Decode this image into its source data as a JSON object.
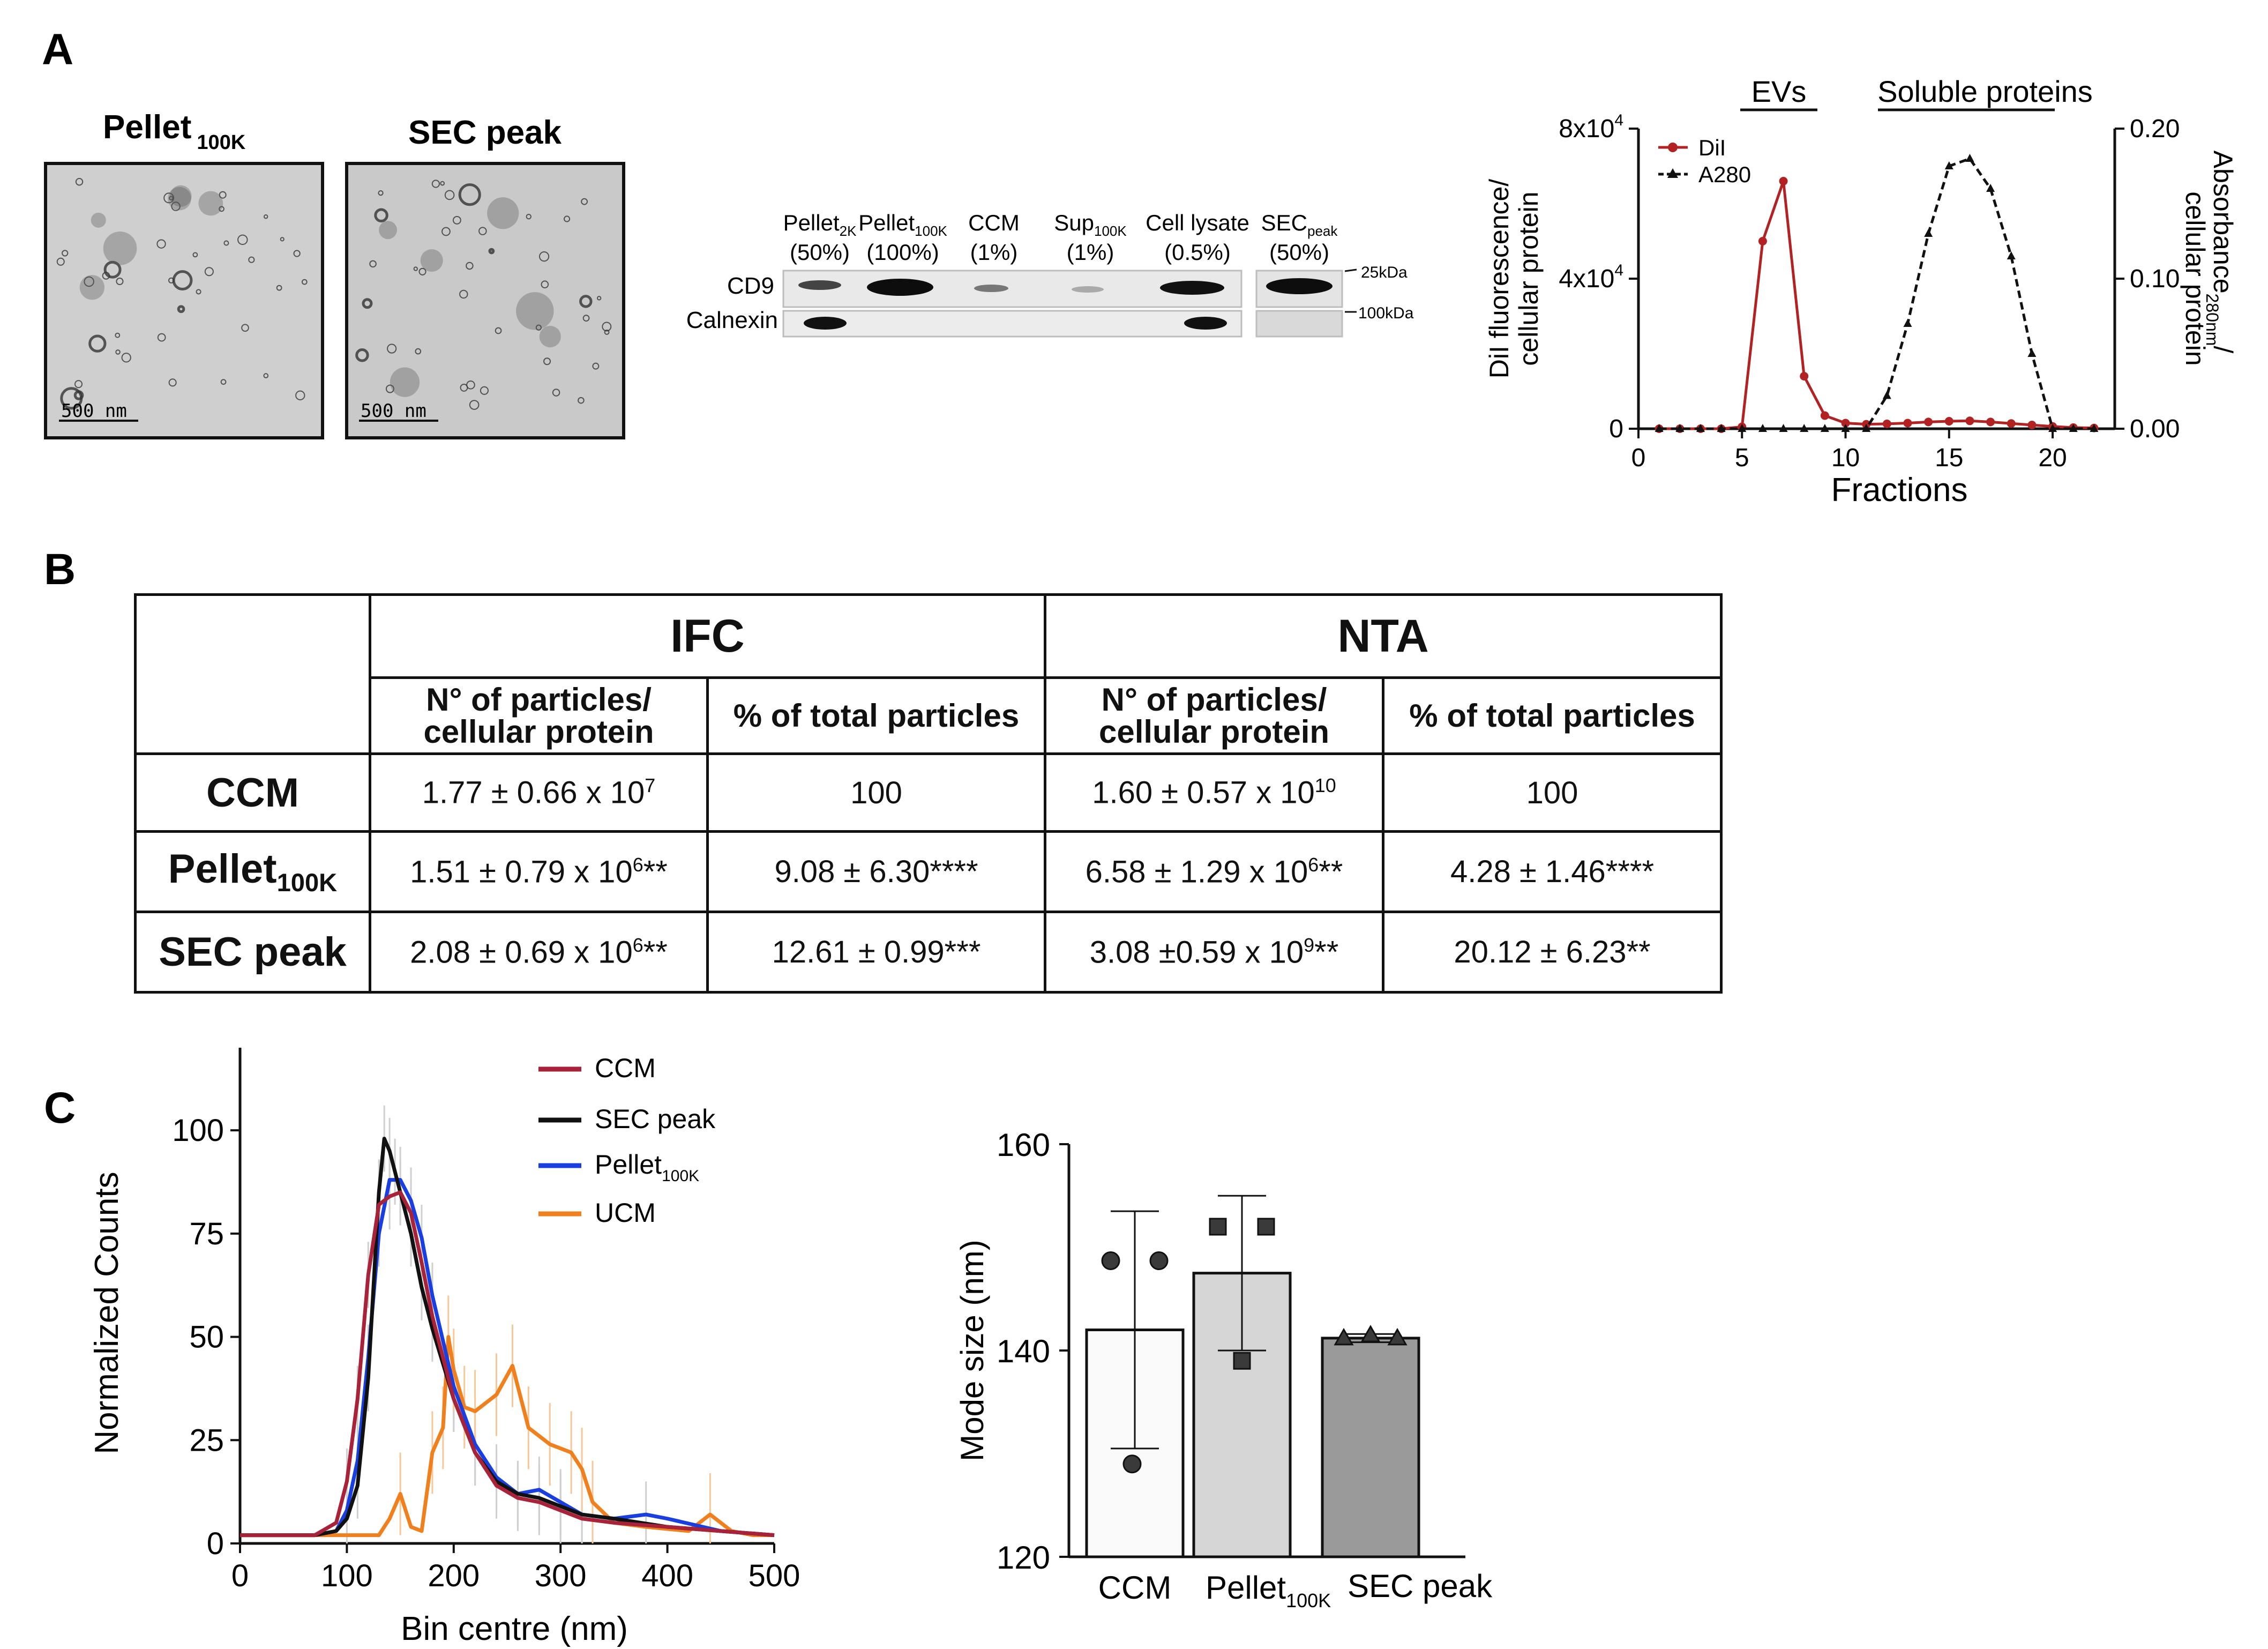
{
  "panels": {
    "a": "A",
    "b": "B",
    "c": "C"
  },
  "tem": {
    "left_title": "Pellet",
    "left_title_sub": "100K",
    "right_title": "SEC peak",
    "scale_bar_left": "500 nm",
    "scale_bar_right": "500 nm"
  },
  "western": {
    "lanes": [
      {
        "name": "Pellet",
        "sub": "2K",
        "amount": "(50%)"
      },
      {
        "name": "Pellet",
        "sub": "100K",
        "amount": "(100%)"
      },
      {
        "name": "CCM",
        "sub": "",
        "amount": "(1%)"
      },
      {
        "name": "Sup",
        "sub": "100K",
        "amount": "(1%)"
      },
      {
        "name": "Cell lysate",
        "sub": "",
        "amount": "(0.5%)"
      },
      {
        "name": "SEC",
        "sub": "peak",
        "amount": "(50%)"
      }
    ],
    "rows": [
      "CD9",
      "Calnexin"
    ],
    "markers": [
      "25kDa",
      "100kDa"
    ]
  },
  "fractions_chart": {
    "type": "line",
    "x_label": "Fractions",
    "y_left_label_1": "DiI fluorescence/",
    "y_left_label_2": "cellular protein",
    "y_right_label_1": "Absorbance",
    "y_right_label_sub": "280nm",
    "y_right_label_2": "cellular protein",
    "bracket_evs": "EVs",
    "bracket_soluble": "Soluble proteins",
    "legend": [
      "DiI",
      "A280"
    ],
    "x_ticks": [
      "0",
      "5",
      "10",
      "15",
      "20"
    ],
    "y_left_ticks": [
      "0",
      "4x10",
      "8x10"
    ],
    "y_left_exp": "4",
    "y_right_ticks": [
      "0.00",
      "0.10",
      "0.20"
    ]
  },
  "table": {
    "ifc": "IFC",
    "nta": "NTA",
    "col_particles_1": "N° of particles/",
    "col_particles_2": "cellular protein",
    "col_percent": "% of total particles",
    "rows": [
      {
        "label": "CCM",
        "label_sub": "",
        "ifc_n": "1.77 ± 0.66 x 10",
        "ifc_n_exp": "7",
        "ifc_n_sig": "",
        "ifc_p": "100",
        "nta_n": "1.60 ± 0.57 x 10",
        "nta_n_exp": "10",
        "nta_n_sig": "",
        "nta_p": "100"
      },
      {
        "label": "Pellet",
        "label_sub": "100K",
        "ifc_n": "1.51 ± 0.79 x 10",
        "ifc_n_exp": "6",
        "ifc_n_sig": "**",
        "ifc_p": "9.08 ± 6.30****",
        "nta_n": "6.58 ± 1.29 x 10",
        "nta_n_exp": "6",
        "nta_n_sig": "**",
        "nta_p": "4.28 ± 1.46****"
      },
      {
        "label": "SEC peak",
        "label_sub": "",
        "ifc_n": "2.08 ± 0.69 x 10",
        "ifc_n_exp": "6",
        "ifc_n_sig": "**",
        "ifc_p": "12.61 ± 0.99***",
        "nta_n": "3.08 ±0.59 x 10",
        "nta_n_exp": "9",
        "nta_n_sig": "**",
        "nta_p": "20.12 ± 6.23**"
      }
    ]
  },
  "nta_chart": {
    "x_label": "Bin centre (nm)",
    "y_label": "Normalized Counts",
    "x_ticks": [
      "0",
      "100",
      "200",
      "300",
      "400",
      "500"
    ],
    "y_ticks": [
      "0",
      "25",
      "50",
      "75",
      "100"
    ],
    "legend": [
      {
        "name": "CCM",
        "sub": ""
      },
      {
        "name": "SEC peak",
        "sub": ""
      },
      {
        "name": "Pellet",
        "sub": "100K"
      },
      {
        "name": "UCM",
        "sub": ""
      }
    ]
  },
  "mode_chart": {
    "y_label": "Mode size (nm)",
    "y_ticks": [
      "120",
      "140",
      "160"
    ],
    "categories": [
      {
        "name": "CCM",
        "sub": ""
      },
      {
        "name": "Pellet",
        "sub": "100K"
      },
      {
        "name": "SEC peak",
        "sub": ""
      }
    ]
  },
  "chart_data": [
    {
      "type": "line",
      "title": "",
      "xlabel": "Fractions",
      "ylabel": "DiI fluorescence/cellular protein",
      "ylabel_right": "Absorbance 280nm / cellular protein",
      "xlim": [
        0,
        23
      ],
      "ylim": [
        0,
        80000
      ],
      "ylim_right": [
        0,
        0.2
      ],
      "series": [
        {
          "name": "DiI",
          "axis": "left",
          "color": "#b22222",
          "x": [
            1,
            2,
            3,
            4,
            5,
            6,
            7,
            8,
            9,
            10,
            11,
            12,
            13,
            14,
            15,
            16,
            17,
            18,
            19,
            20,
            21,
            22
          ],
          "y": [
            0,
            0,
            0,
            0,
            500,
            50000,
            66000,
            14000,
            3500,
            1500,
            1200,
            1300,
            1500,
            1800,
            2000,
            2100,
            1800,
            1400,
            1000,
            600,
            300,
            200
          ]
        },
        {
          "name": "A280",
          "axis": "right",
          "color": "#111111",
          "x": [
            1,
            2,
            3,
            4,
            5,
            6,
            7,
            8,
            9,
            10,
            11,
            12,
            13,
            14,
            15,
            16,
            17,
            18,
            19,
            20,
            21,
            22
          ],
          "y": [
            0,
            0,
            0,
            0,
            0,
            0,
            0,
            0,
            0,
            0,
            0,
            0.022,
            0.07,
            0.13,
            0.175,
            0.18,
            0.16,
            0.115,
            0.05,
            0,
            0,
            0
          ]
        }
      ]
    },
    {
      "type": "line",
      "title": "",
      "xlabel": "Bin centre (nm)",
      "ylabel": "Normalized Counts",
      "xlim": [
        0,
        500
      ],
      "ylim": [
        0,
        120
      ],
      "series": [
        {
          "name": "CCM",
          "color": "#a8233a",
          "x": [
            0,
            50,
            70,
            90,
            100,
            110,
            120,
            130,
            140,
            150,
            160,
            170,
            180,
            200,
            220,
            240,
            260,
            280,
            300,
            320,
            350,
            400,
            450,
            500
          ],
          "y": [
            2,
            2,
            2,
            5,
            15,
            35,
            65,
            82,
            84,
            85,
            80,
            68,
            55,
            35,
            22,
            14,
            11,
            10,
            8,
            6,
            5,
            4,
            3,
            2
          ]
        },
        {
          "name": "SEC peak",
          "color": "#111111",
          "x": [
            0,
            50,
            70,
            90,
            100,
            110,
            120,
            130,
            135,
            140,
            145,
            150,
            160,
            170,
            180,
            200,
            220,
            240,
            260,
            280,
            300,
            320,
            350,
            400,
            450,
            500
          ],
          "y": [
            2,
            2,
            2,
            3,
            6,
            14,
            40,
            85,
            98,
            95,
            90,
            85,
            75,
            62,
            52,
            35,
            22,
            15,
            12,
            11,
            9,
            7,
            6,
            4,
            3,
            2
          ]
        },
        {
          "name": "Pellet 100K",
          "color": "#1a3fe0",
          "x": [
            0,
            50,
            70,
            90,
            100,
            110,
            120,
            130,
            140,
            150,
            160,
            170,
            180,
            200,
            220,
            240,
            260,
            280,
            300,
            320,
            350,
            380,
            400,
            450,
            500
          ],
          "y": [
            2,
            2,
            2,
            3,
            8,
            20,
            45,
            75,
            88,
            88,
            83,
            74,
            60,
            38,
            24,
            16,
            12,
            13,
            10,
            7,
            6,
            7,
            6,
            3,
            2
          ]
        },
        {
          "name": "UCM",
          "color": "#f07f1e",
          "x": [
            0,
            50,
            100,
            130,
            140,
            150,
            160,
            170,
            180,
            190,
            195,
            200,
            210,
            220,
            240,
            255,
            270,
            290,
            310,
            320,
            330,
            350,
            380,
            420,
            440,
            460,
            480,
            500
          ],
          "y": [
            2,
            2,
            2,
            2,
            6,
            12,
            4,
            3,
            22,
            28,
            50,
            42,
            33,
            32,
            36,
            43,
            28,
            24,
            22,
            18,
            10,
            5,
            4,
            3,
            7,
            3,
            2,
            2
          ]
        }
      ]
    },
    {
      "type": "bar",
      "title": "",
      "xlabel": "",
      "ylabel": "Mode size (nm)",
      "ylim": [
        120,
        160
      ],
      "categories": [
        "CCM",
        "Pellet 100K",
        "SEC peak"
      ],
      "values": [
        142,
        147.5,
        141.2
      ],
      "error": [
        11.5,
        7.5,
        0.4
      ],
      "points": [
        [
          148.7,
          148.7,
          129
        ],
        [
          152,
          152,
          139
        ],
        [
          141.2,
          141.5,
          141.2
        ]
      ],
      "colors": [
        "#fafafa",
        "#d6d6d6",
        "#9a9a9a"
      ]
    }
  ]
}
